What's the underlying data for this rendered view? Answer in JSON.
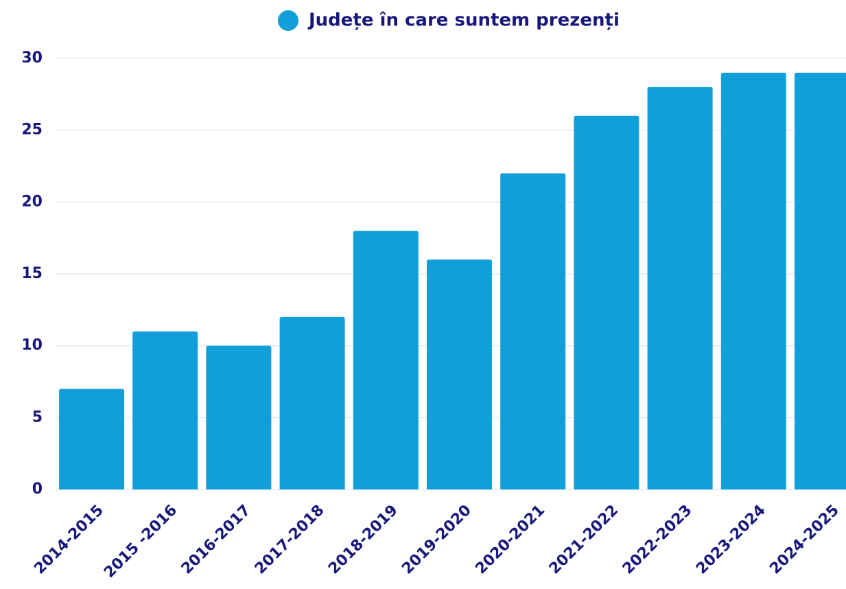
{
  "chart_data": {
    "type": "bar",
    "legend": "Județe în care suntem prezenți",
    "categories": [
      "2014-2015",
      "2015 -2016",
      "2016-2017",
      "2017-2018",
      "2018-2019",
      "2019-2020",
      "2020-2021",
      "2021-2022",
      "2022-2023",
      "2023-2024",
      "2024-2025"
    ],
    "values": [
      7,
      11,
      10,
      12,
      18,
      16,
      22,
      26,
      28,
      29,
      29
    ],
    "color": "#119fda",
    "ylim": [
      0,
      30
    ],
    "yticks": [
      0,
      5,
      10,
      15,
      20,
      25,
      30
    ],
    "grid": true
  }
}
